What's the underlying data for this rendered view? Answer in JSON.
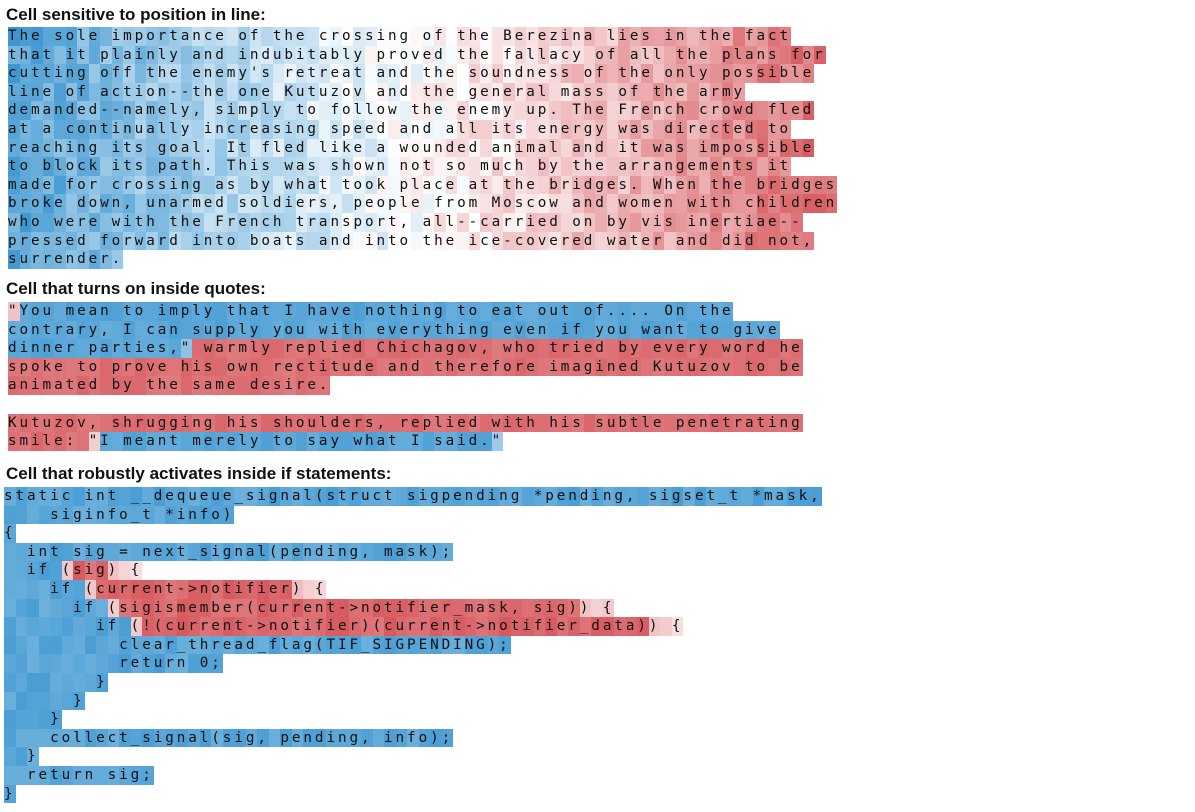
{
  "sections": [
    {
      "title": "Cell sensitive to position in line:",
      "mode": "position",
      "lines": [
        "The sole importance of the crossing of the Berezina lies in the fact",
        "that it plainly and indubitably proved the fallacy of all the plans for",
        "cutting off the enemy's retreat and the soundness of the only possible",
        "line of action--the one Kutuzov and the general mass of the army",
        "demanded--namely, simply to follow the enemy up. The French crowd fled",
        "at a continually increasing speed and all its energy was directed to",
        "reaching its goal. It fled like a wounded animal and it was impossible",
        "to block its path. This was shown not so much by the arrangements it",
        "made for crossing as by what took place at the bridges. When the bridges",
        "broke down, unarmed soldiers, people from Moscow and women with children",
        "who were with the French transport, all--carried on by vis inertiae--",
        "pressed forward into boats and into the ice-covered water and did not,",
        "surrender."
      ]
    },
    {
      "title": "Cell that turns on inside quotes:",
      "mode": "quotes",
      "lines": [
        "\"You mean to imply that I have nothing to eat out of.... On the",
        "contrary, I can supply you with everything even if you want to give",
        "dinner parties,\" warmly replied Chichagov, who tried by every word he",
        "spoke to prove his own rectitude and therefore imagined Kutuzov to be",
        "animated by the same desire.",
        "",
        "Kutuzov, shrugging his shoulders, replied with his subtle penetrating",
        "smile: \"I meant merely to say what I said.\""
      ]
    },
    {
      "title": "Cell that robustly activates inside if statements:",
      "mode": "code",
      "lines": [
        "static int __dequeue_signal(struct sigpending *pending, sigset_t *mask,",
        "    siginfo_t *info)",
        "{",
        "  int sig = next_signal(pending, mask);",
        "  if (sig) {",
        "    if (current->notifier) {",
        "      if (sigismember(current->notifier_mask, sig)) {",
        "        if (!(current->notifier)(current->notifier_data)) {",
        "          clear_thread_flag(TIF_SIGPENDING);",
        "          return 0;",
        "        }",
        "      }",
        "    }",
        "    collect_signal(sig, pending, info);",
        "  }",
        "  return sig;",
        "}"
      ]
    }
  ],
  "colors": {
    "positive": "#d6575c",
    "negative": "#3d97d1",
    "neutral": "#ffffff"
  }
}
